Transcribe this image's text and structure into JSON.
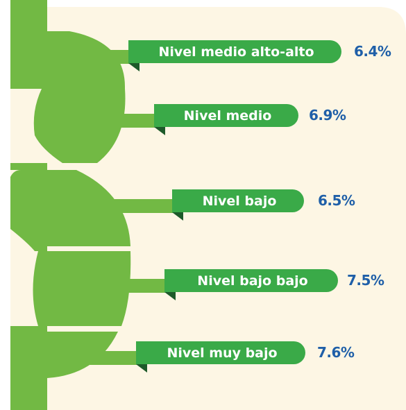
{
  "items": [
    {
      "label": "Nivel medio alto-alto",
      "value": "6.4%"
    },
    {
      "label": "Nivel medio",
      "value": "6.9%"
    },
    {
      "label": "Nivel bajo",
      "value": "6.5%"
    },
    {
      "label": "Nivel bajo bajo",
      "value": "7.5%"
    },
    {
      "label": "Nivel muy bajo",
      "value": "7.6%"
    }
  ]
}
